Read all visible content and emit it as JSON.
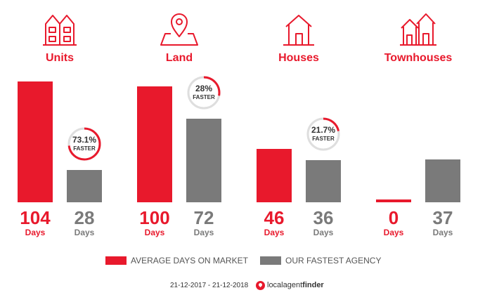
{
  "colors": {
    "avg": "#e8192c",
    "fast": "#7a7a7a"
  },
  "chart_data": {
    "type": "bar",
    "categories": [
      "Units",
      "Land",
      "Houses",
      "Townhouses"
    ],
    "category_icons": [
      "units-icon",
      "land-pin-icon",
      "house-icon",
      "townhouses-icon"
    ],
    "series": [
      {
        "name": "AVERAGE DAYS ON MARKET",
        "values": [
          104,
          100,
          46,
          0
        ]
      },
      {
        "name": "OUR FASTEST AGENCY",
        "values": [
          28,
          72,
          36,
          37
        ]
      }
    ],
    "unit_label": "Days",
    "badges": [
      {
        "category": "Units",
        "percent": "73.1%",
        "label": "FASTER",
        "fraction": 0.731
      },
      {
        "category": "Land",
        "percent": "28%",
        "label": "FASTER",
        "fraction": 0.28
      },
      {
        "category": "Houses",
        "percent": "21.7%",
        "label": "FASTER",
        "fraction": 0.217
      }
    ],
    "ylim": [
      0,
      104
    ],
    "grid": false,
    "legend_position": "bottom"
  },
  "footer": {
    "date_range": "21-12-2017 - 21-12-2018",
    "brand_light": "localagent",
    "brand_bold": "finder"
  }
}
